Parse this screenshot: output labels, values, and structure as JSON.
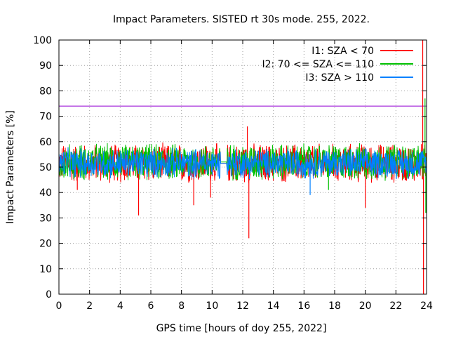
{
  "chart_data": {
    "type": "line",
    "title": "Impact Parameters. SISTED rt 30s mode. 255, 2022.",
    "xlabel": "GPS time [hours of doy 255, 2022]",
    "ylabel": "Impact Parameters [%]",
    "xlim": [
      0,
      24
    ],
    "ylim": [
      0,
      100
    ],
    "xticks": [
      "0",
      "2",
      "4",
      "6",
      "8",
      "10",
      "12",
      "14",
      "16",
      "18",
      "20",
      "22",
      "24"
    ],
    "yticks": [
      "0",
      "10",
      "20",
      "30",
      "40",
      "50",
      "60",
      "70",
      "80",
      "90",
      "100"
    ],
    "grid": true,
    "legend_position": "top-right",
    "reference_line": {
      "y": 74,
      "color": "#9400d3"
    },
    "gap": {
      "start": 10.55,
      "end": 10.95
    },
    "series": [
      {
        "name": "I1: SZA < 70",
        "color": "#ff0000",
        "band": [
          43,
          60
        ],
        "spikes": [
          {
            "x": 5.2,
            "y": 31
          },
          {
            "x": 8.8,
            "y": 35
          },
          {
            "x": 12.4,
            "y": 22
          },
          {
            "x": 12.3,
            "y": 66
          },
          {
            "x": 20.0,
            "y": 34
          },
          {
            "x": 9.9,
            "y": 38
          },
          {
            "x": 1.2,
            "y": 41
          },
          {
            "x": 23.75,
            "y": 100
          },
          {
            "x": 23.8,
            "y": 0
          }
        ]
      },
      {
        "name": "I2: 70 <= SZA <= 110",
        "color": "#00c000",
        "band": [
          44,
          60
        ],
        "spikes": [
          {
            "x": 17.6,
            "y": 41
          },
          {
            "x": 23.9,
            "y": 77
          },
          {
            "x": 23.95,
            "y": 32
          }
        ]
      },
      {
        "name": "I3: SZA > 110",
        "color": "#0080ff",
        "band": [
          45,
          58
        ],
        "spikes": [
          {
            "x": 16.4,
            "y": 39
          }
        ]
      }
    ]
  }
}
